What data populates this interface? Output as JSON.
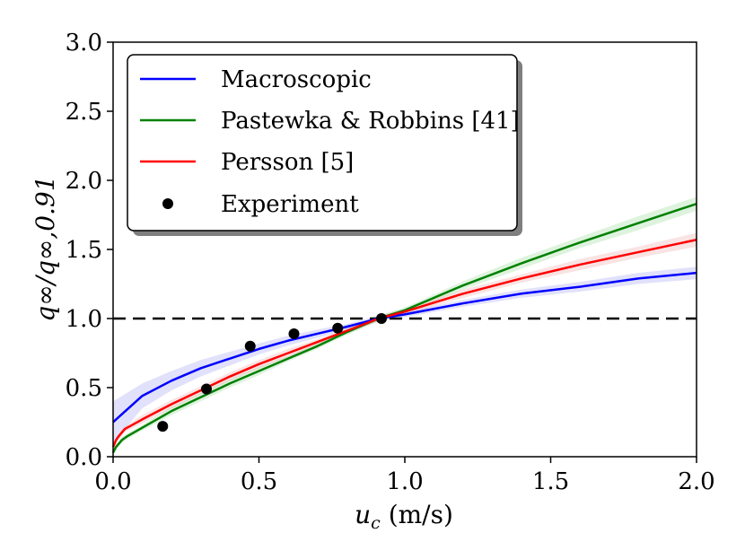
{
  "chart_data": {
    "type": "line",
    "xlabel_var": "u",
    "xlabel_sub": "c",
    "xlabel_unit": " (m/s)",
    "ylabel": "q∞/q∞,0.91",
    "xlim": [
      0.0,
      2.0
    ],
    "ylim": [
      0.0,
      3.0
    ],
    "xticks": [
      0.0,
      0.5,
      1.0,
      1.5,
      2.0
    ],
    "xtick_labels": [
      "0.0",
      "0.5",
      "1.0",
      "1.5",
      "2.0"
    ],
    "yticks": [
      0.0,
      0.5,
      1.0,
      1.5,
      2.0,
      2.5,
      3.0
    ],
    "ytick_labels": [
      "0.0",
      "0.5",
      "1.0",
      "1.5",
      "2.0",
      "2.5",
      "3.0"
    ],
    "reference_line": {
      "y": 1.0,
      "style": "dashed",
      "color": "#000000"
    },
    "legend_position": "upper-left",
    "series": [
      {
        "name": "Macroscopic",
        "color": "#0000ff",
        "band_color": "#8888ee",
        "x": [
          0.0,
          0.1,
          0.2,
          0.3,
          0.4,
          0.5,
          0.6,
          0.7,
          0.8,
          0.91,
          1.0,
          1.2,
          1.4,
          1.6,
          1.8,
          2.0
        ],
        "y": [
          0.25,
          0.44,
          0.55,
          0.64,
          0.71,
          0.78,
          0.84,
          0.89,
          0.94,
          1.0,
          1.03,
          1.11,
          1.18,
          1.23,
          1.29,
          1.33
        ],
        "band": [
          0.15,
          0.09,
          0.07,
          0.06,
          0.05,
          0.04,
          0.035,
          0.03,
          0.02,
          0.02,
          0.02,
          0.025,
          0.03,
          0.035,
          0.04,
          0.045
        ]
      },
      {
        "name": "Pastewka & Robbins [41]",
        "color": "#008000",
        "band_color": "#7ccf7c",
        "x": [
          0.0,
          0.01,
          0.03,
          0.05,
          0.1,
          0.2,
          0.3,
          0.4,
          0.5,
          0.6,
          0.7,
          0.8,
          0.91,
          1.0,
          1.2,
          1.4,
          1.6,
          1.8,
          2.0
        ],
        "y": [
          0.03,
          0.07,
          0.12,
          0.15,
          0.21,
          0.33,
          0.43,
          0.53,
          0.62,
          0.71,
          0.8,
          0.9,
          1.0,
          1.06,
          1.24,
          1.4,
          1.55,
          1.69,
          1.83
        ],
        "band": [
          0.02,
          0.02,
          0.02,
          0.02,
          0.02,
          0.03,
          0.03,
          0.03,
          0.03,
          0.02,
          0.02,
          0.02,
          0.02,
          0.02,
          0.03,
          0.04,
          0.04,
          0.05,
          0.05
        ]
      },
      {
        "name": "Persson [5]",
        "color": "#ff0000",
        "band_color": "#e89090",
        "x": [
          0.0,
          0.01,
          0.02,
          0.04,
          0.1,
          0.2,
          0.3,
          0.4,
          0.5,
          0.6,
          0.7,
          0.8,
          0.91,
          1.0,
          1.2,
          1.4,
          1.6,
          1.8,
          2.0
        ],
        "y": [
          0.07,
          0.12,
          0.15,
          0.2,
          0.27,
          0.38,
          0.48,
          0.58,
          0.67,
          0.75,
          0.83,
          0.91,
          1.0,
          1.05,
          1.18,
          1.29,
          1.39,
          1.48,
          1.57
        ],
        "band": [
          0.02,
          0.02,
          0.02,
          0.02,
          0.03,
          0.03,
          0.03,
          0.03,
          0.03,
          0.03,
          0.02,
          0.02,
          0.02,
          0.02,
          0.03,
          0.03,
          0.04,
          0.04,
          0.05
        ]
      }
    ],
    "points": {
      "name": "Experiment",
      "color": "#000000",
      "x": [
        0.17,
        0.32,
        0.47,
        0.62,
        0.77,
        0.92
      ],
      "y": [
        0.22,
        0.49,
        0.8,
        0.89,
        0.93,
        1.0
      ]
    }
  }
}
